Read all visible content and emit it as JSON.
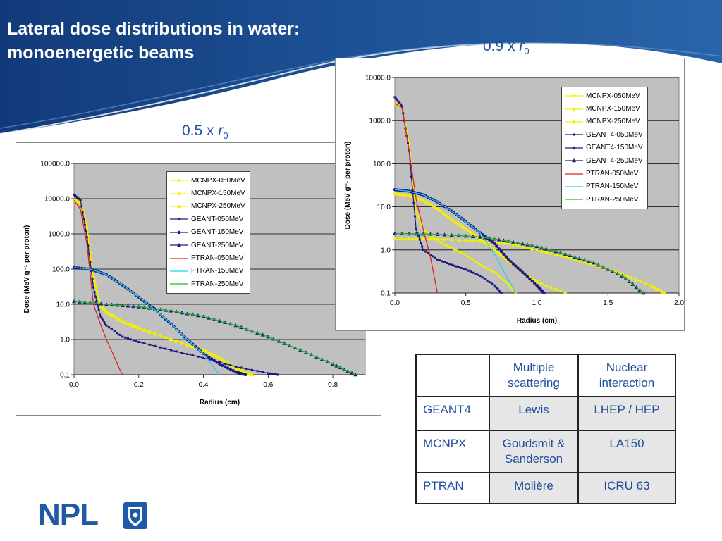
{
  "slide": {
    "title_lines": [
      "Lateral dose distributions in water:",
      "monoenergetic beams"
    ],
    "logo_text": "NPL"
  },
  "captions": {
    "left": {
      "prefix": "0.5 x ",
      "var": "r",
      "sub": "0"
    },
    "right": {
      "prefix": "0.9 x ",
      "var": "r",
      "sub": "0"
    }
  },
  "colors": {
    "mcnpx": "#f0f000",
    "geant": "#1a1a80",
    "ptran_050": "#e02020",
    "ptran_150": "#20d0f0",
    "ptran_250": "#20c020",
    "plot_bg": "#c0c0c0",
    "accent": "#1f4e9c"
  },
  "chart_data": [
    {
      "type": "line",
      "title": "",
      "xlabel": "Radius (cm)",
      "ylabel": "Dose  (MeV   g⁻¹ per proton)",
      "yscale": "log",
      "xlim": [
        0,
        0.9
      ],
      "ylim": [
        0.1,
        100000
      ],
      "xticks": [
        0,
        0.2,
        0.4,
        0.6,
        0.8
      ],
      "xtick_labels": [
        "0.0",
        "0.2",
        "0.4",
        "0.6",
        "0.8"
      ],
      "yticks": [
        0.1,
        1,
        10,
        100,
        1000,
        10000,
        100000
      ],
      "ytick_labels": [
        "0.1",
        "1.0",
        "10.0",
        "100.0",
        "1000.0",
        "10000.0",
        "100000.0"
      ],
      "grid": true,
      "legend_position": "top-right",
      "series": [
        {
          "name": "MCNPX-050MeV",
          "points": [
            [
              0,
              9000
            ],
            [
              0.02,
              8000
            ],
            [
              0.04,
              1500
            ],
            [
              0.06,
              60
            ],
            [
              0.08,
              10
            ],
            [
              0.1,
              6
            ],
            [
              0.15,
              3.2
            ],
            [
              0.2,
              2.1
            ],
            [
              0.3,
              1
            ],
            [
              0.4,
              0.5
            ],
            [
              0.45,
              0.3
            ],
            [
              0.5,
              0.15
            ],
            [
              0.55,
              0.1
            ]
          ]
        },
        {
          "name": "MCNPX-150MeV",
          "points": [
            [
              0,
              9000
            ],
            [
              0.02,
              8000
            ],
            [
              0.04,
              1500
            ],
            [
              0.06,
              60
            ],
            [
              0.08,
              10
            ],
            [
              0.1,
              6
            ],
            [
              0.15,
              3.2
            ],
            [
              0.2,
              2.1
            ],
            [
              0.3,
              1
            ],
            [
              0.4,
              0.5
            ],
            [
              0.45,
              0.3
            ],
            [
              0.5,
              0.15
            ],
            [
              0.55,
              0.1
            ]
          ]
        },
        {
          "name": "MCNPX-250MeV",
          "points": [
            [
              0,
              9000
            ],
            [
              0.02,
              8000
            ],
            [
              0.04,
              1500
            ],
            [
              0.06,
              60
            ],
            [
              0.08,
              10
            ],
            [
              0.1,
              6
            ],
            [
              0.15,
              3.2
            ],
            [
              0.2,
              2.1
            ],
            [
              0.3,
              1
            ],
            [
              0.4,
              0.5
            ],
            [
              0.45,
              0.3
            ],
            [
              0.5,
              0.15
            ],
            [
              0.55,
              0.1
            ]
          ]
        },
        {
          "name": "GEANT-050MeV",
          "points": [
            [
              0,
              13000
            ],
            [
              0.02,
              9000
            ],
            [
              0.04,
              800
            ],
            [
              0.06,
              30
            ],
            [
              0.08,
              5
            ],
            [
              0.1,
              2.5
            ],
            [
              0.15,
              1.2
            ],
            [
              0.2,
              0.85
            ],
            [
              0.3,
              0.5
            ],
            [
              0.4,
              0.3
            ],
            [
              0.5,
              0.17
            ],
            [
              0.6,
              0.11
            ],
            [
              0.63,
              0.1
            ]
          ]
        },
        {
          "name": "GEANT-150MeV",
          "points": [
            [
              0,
              110
            ],
            [
              0.05,
              100
            ],
            [
              0.1,
              70
            ],
            [
              0.15,
              35
            ],
            [
              0.2,
              16
            ],
            [
              0.25,
              7
            ],
            [
              0.3,
              2.8
            ],
            [
              0.35,
              1
            ],
            [
              0.4,
              0.4
            ],
            [
              0.45,
              0.2
            ],
            [
              0.5,
              0.12
            ],
            [
              0.53,
              0.1
            ]
          ]
        },
        {
          "name": "GEANT-250MeV",
          "points": [
            [
              0,
              12
            ],
            [
              0.1,
              10
            ],
            [
              0.2,
              8.5
            ],
            [
              0.3,
              6.5
            ],
            [
              0.4,
              4.5
            ],
            [
              0.5,
              2.5
            ],
            [
              0.6,
              1.2
            ],
            [
              0.7,
              0.5
            ],
            [
              0.8,
              0.2
            ],
            [
              0.87,
              0.1
            ]
          ]
        },
        {
          "name": "PTRAN-050MeV",
          "points": [
            [
              0,
              9000
            ],
            [
              0.02,
              5000
            ],
            [
              0.04,
              500
            ],
            [
              0.06,
              10
            ],
            [
              0.08,
              3
            ],
            [
              0.1,
              1
            ],
            [
              0.12,
              0.4
            ],
            [
              0.14,
              0.15
            ],
            [
              0.15,
              0.1
            ]
          ]
        },
        {
          "name": "PTRAN-150MeV",
          "points": [
            [
              0,
              110
            ],
            [
              0.05,
              100
            ],
            [
              0.1,
              70
            ],
            [
              0.15,
              35
            ],
            [
              0.2,
              16
            ],
            [
              0.25,
              7
            ],
            [
              0.3,
              2.8
            ],
            [
              0.35,
              1
            ],
            [
              0.4,
              0.4
            ],
            [
              0.45,
              0.1
            ]
          ]
        },
        {
          "name": "PTRAN-250MeV",
          "points": [
            [
              0,
              12
            ],
            [
              0.1,
              10
            ],
            [
              0.2,
              8.5
            ],
            [
              0.3,
              6.5
            ],
            [
              0.4,
              4.5
            ],
            [
              0.5,
              2.5
            ],
            [
              0.6,
              1.2
            ],
            [
              0.7,
              0.5
            ],
            [
              0.8,
              0.2
            ],
            [
              0.87,
              0.1
            ]
          ]
        }
      ]
    },
    {
      "type": "line",
      "title": "",
      "xlabel": "Radius (cm)",
      "ylabel": "Dose  (MeV   g⁻¹ per proton)",
      "yscale": "log",
      "xlim": [
        0,
        2
      ],
      "ylim": [
        0.1,
        10000
      ],
      "xticks": [
        0,
        0.5,
        1,
        1.5,
        2
      ],
      "xtick_labels": [
        "0.0",
        "0.5",
        "1.0",
        "1.5",
        "2.0"
      ],
      "yticks": [
        0.1,
        1,
        10,
        100,
        1000,
        10000
      ],
      "ytick_labels": [
        "0.1",
        "1.0",
        "10.0",
        "100.0",
        "1000.0",
        "10000.0"
      ],
      "grid": true,
      "legend_position": "top-right",
      "series": [
        {
          "name": "MCNPX-050MeV",
          "points": [
            [
              0,
              2500
            ],
            [
              0.05,
              2000
            ],
            [
              0.1,
              300
            ],
            [
              0.15,
              8
            ],
            [
              0.2,
              3
            ],
            [
              0.3,
              1.6
            ],
            [
              0.4,
              1.1
            ],
            [
              0.5,
              0.75
            ],
            [
              0.6,
              0.45
            ],
            [
              0.7,
              0.3
            ],
            [
              0.8,
              0.16
            ],
            [
              0.85,
              0.1
            ]
          ]
        },
        {
          "name": "MCNPX-150MeV",
          "points": [
            [
              0,
              20
            ],
            [
              0.1,
              18
            ],
            [
              0.2,
              14
            ],
            [
              0.3,
              9
            ],
            [
              0.4,
              5
            ],
            [
              0.5,
              3
            ],
            [
              0.6,
              1.8
            ],
            [
              0.7,
              1
            ],
            [
              0.8,
              0.55
            ],
            [
              0.9,
              0.3
            ],
            [
              1,
              0.18
            ],
            [
              1.2,
              0.1
            ]
          ]
        },
        {
          "name": "MCNPX-250MeV",
          "points": [
            [
              0,
              1.8
            ],
            [
              0.3,
              1.8
            ],
            [
              0.6,
              1.6
            ],
            [
              0.8,
              1.4
            ],
            [
              1,
              1
            ],
            [
              1.2,
              0.7
            ],
            [
              1.4,
              0.45
            ],
            [
              1.6,
              0.28
            ],
            [
              1.8,
              0.15
            ],
            [
              1.9,
              0.1
            ]
          ]
        },
        {
          "name": "GEANT4-050MeV",
          "points": [
            [
              0,
              3500
            ],
            [
              0.05,
              2200
            ],
            [
              0.1,
              200
            ],
            [
              0.15,
              3
            ],
            [
              0.2,
              1
            ],
            [
              0.3,
              0.6
            ],
            [
              0.4,
              0.45
            ],
            [
              0.5,
              0.35
            ],
            [
              0.6,
              0.25
            ],
            [
              0.7,
              0.15
            ],
            [
              0.75,
              0.1
            ]
          ]
        },
        {
          "name": "GEANT4-150MeV",
          "points": [
            [
              0,
              25
            ],
            [
              0.1,
              23
            ],
            [
              0.2,
              19
            ],
            [
              0.3,
              13
            ],
            [
              0.4,
              8
            ],
            [
              0.5,
              4.5
            ],
            [
              0.6,
              2.5
            ],
            [
              0.7,
              1.4
            ],
            [
              0.8,
              0.6
            ],
            [
              0.9,
              0.3
            ],
            [
              1,
              0.15
            ],
            [
              1.05,
              0.1
            ]
          ]
        },
        {
          "name": "GEANT4-250MeV",
          "points": [
            [
              0,
              2.4
            ],
            [
              0.3,
              2.3
            ],
            [
              0.6,
              2
            ],
            [
              0.8,
              1.6
            ],
            [
              1,
              1.2
            ],
            [
              1.2,
              0.8
            ],
            [
              1.4,
              0.5
            ],
            [
              1.6,
              0.25
            ],
            [
              1.75,
              0.1
            ]
          ]
        },
        {
          "name": "PTRAN-050MeV",
          "points": [
            [
              0,
              2500
            ],
            [
              0.05,
              2000
            ],
            [
              0.1,
              200
            ],
            [
              0.15,
              15
            ],
            [
              0.2,
              3
            ],
            [
              0.25,
              0.7
            ],
            [
              0.3,
              0.1
            ]
          ]
        },
        {
          "name": "PTRAN-150MeV",
          "points": [
            [
              0,
              25
            ],
            [
              0.1,
              23
            ],
            [
              0.2,
              19
            ],
            [
              0.3,
              13
            ],
            [
              0.4,
              8
            ],
            [
              0.5,
              4.5
            ],
            [
              0.6,
              2.5
            ],
            [
              0.7,
              0.8
            ],
            [
              0.8,
              0.2
            ],
            [
              0.85,
              0.1
            ]
          ]
        },
        {
          "name": "PTRAN-250MeV",
          "points": [
            [
              0,
              2.4
            ],
            [
              0.3,
              2.3
            ],
            [
              0.6,
              2
            ],
            [
              0.8,
              1.6
            ],
            [
              1,
              1.2
            ],
            [
              1.2,
              0.8
            ],
            [
              1.4,
              0.5
            ],
            [
              1.6,
              0.25
            ],
            [
              1.75,
              0.1
            ]
          ]
        }
      ]
    }
  ],
  "table": {
    "headers": [
      "",
      "Multiple scattering",
      "Nuclear interaction"
    ],
    "rows": [
      {
        "code": "GEANT4",
        "scattering": "Lewis",
        "nuclear": "LHEP / HEP"
      },
      {
        "code": "MCNPX",
        "scattering": "Goudsmit & Sanderson",
        "nuclear": "LA150"
      },
      {
        "code": "PTRAN",
        "scattering": "Molière",
        "nuclear": "ICRU 63"
      }
    ]
  }
}
